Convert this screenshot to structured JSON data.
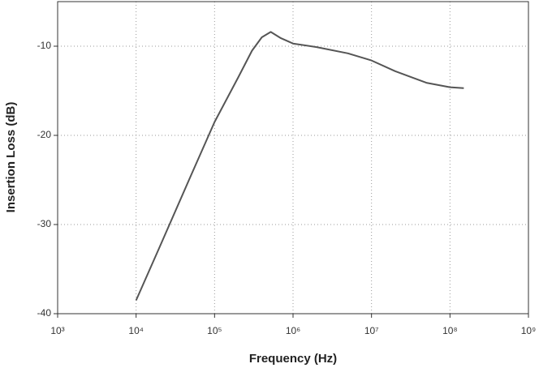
{
  "chart_data": {
    "type": "line",
    "x_label": "Frequency (Hz)",
    "y_label": "Insertion Loss (dB)",
    "x_log": true,
    "grid": true,
    "color": "#555555",
    "x": [
      10000,
      20000,
      50000,
      100000,
      200000,
      300000,
      400000,
      520000,
      700000,
      1000000,
      2000000,
      5000000,
      10000000,
      20000000,
      50000000,
      100000000,
      150000000
    ],
    "values": [
      -38.5,
      -32.5,
      -24.5,
      -18.5,
      -13.5,
      -10.5,
      -9.0,
      -8.4,
      -9.1,
      -9.7,
      -10.1,
      -10.8,
      -11.6,
      -12.8,
      -14.1,
      -14.6,
      -14.7
    ],
    "xlim": [
      1000,
      1000000000
    ],
    "xticks": [
      {
        "value": 1000,
        "label": "10³"
      },
      {
        "value": 10000,
        "label": "10⁴"
      },
      {
        "value": 100000,
        "label": "10⁵"
      },
      {
        "value": 1000000,
        "label": "10⁶"
      },
      {
        "value": 10000000,
        "label": "10⁷"
      },
      {
        "value": 100000000,
        "label": "10⁸"
      },
      {
        "value": 1000000000,
        "label": "10⁹"
      }
    ],
    "ylim": [
      -40,
      -5
    ],
    "yticks": [
      -40,
      -30,
      -20,
      -10
    ]
  }
}
